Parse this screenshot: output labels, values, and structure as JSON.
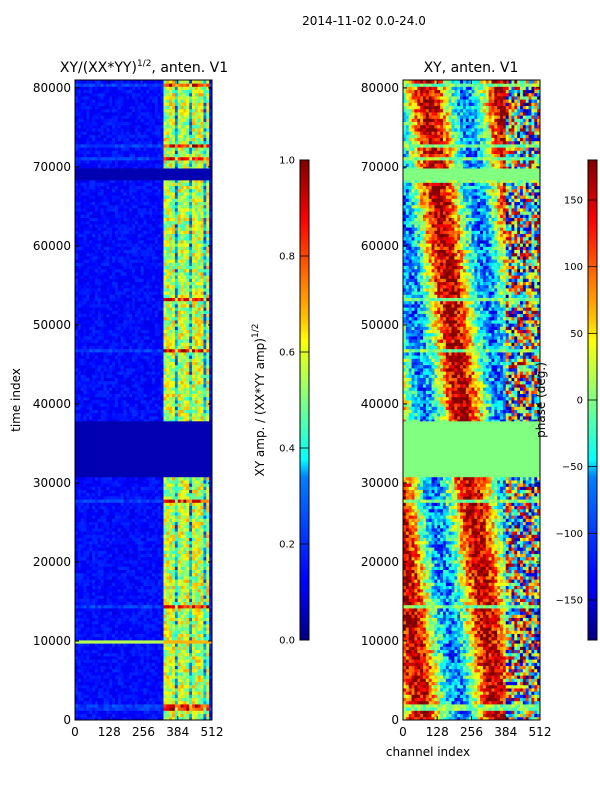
{
  "figure": {
    "suptitle": "2014-11-02 0.0-24.0",
    "xlabel_shared": "channel index"
  },
  "chart_data": [
    {
      "type": "heatmap",
      "title_main": "XY/(XX*YY)",
      "title_exp": "1/2",
      "title_suffix": ", anten. V1",
      "ylabel": "time index",
      "x_ticks": [
        "0",
        "128",
        "256",
        "384",
        "512"
      ],
      "y_ticks": [
        "0",
        "10000",
        "20000",
        "30000",
        "40000",
        "50000",
        "60000",
        "70000",
        "80000"
      ],
      "xlim": [
        0,
        512
      ],
      "ylim": [
        0,
        81000
      ],
      "colormap": "jet",
      "colorbar": {
        "label_main": "XY amp. / (XX*YY amp)",
        "label_exp": "1/2",
        "ticks": [
          "0.0",
          "0.2",
          "0.4",
          "0.6",
          "0.8",
          "1.0"
        ],
        "range": [
          0,
          1
        ]
      },
      "flagged_time_ranges": [
        [
          30800,
          37800
        ],
        [
          68300,
          69800
        ]
      ],
      "features": [
        {
          "channels": [
            330,
            500
          ],
          "level": 0.5
        },
        {
          "time": 10000,
          "channels": [
            0,
            512
          ],
          "level": 0.6
        }
      ]
    },
    {
      "type": "heatmap",
      "title": "XY, anten. V1",
      "x_ticks": [
        "0",
        "128",
        "256",
        "384",
        "512"
      ],
      "y_ticks": [
        "0",
        "10000",
        "20000",
        "30000",
        "40000",
        "50000",
        "60000",
        "70000",
        "80000"
      ],
      "xlim": [
        0,
        512
      ],
      "ylim": [
        0,
        81000
      ],
      "colormap": "jet",
      "colorbar": {
        "label": "phase (deg.)",
        "ticks": [
          "−150",
          "−100",
          "−50",
          "0",
          "50",
          "100",
          "150"
        ],
        "range": [
          -180,
          180
        ]
      },
      "flagged_time_ranges": [
        [
          30800,
          37800
        ],
        [
          68300,
          69800
        ]
      ]
    }
  ]
}
